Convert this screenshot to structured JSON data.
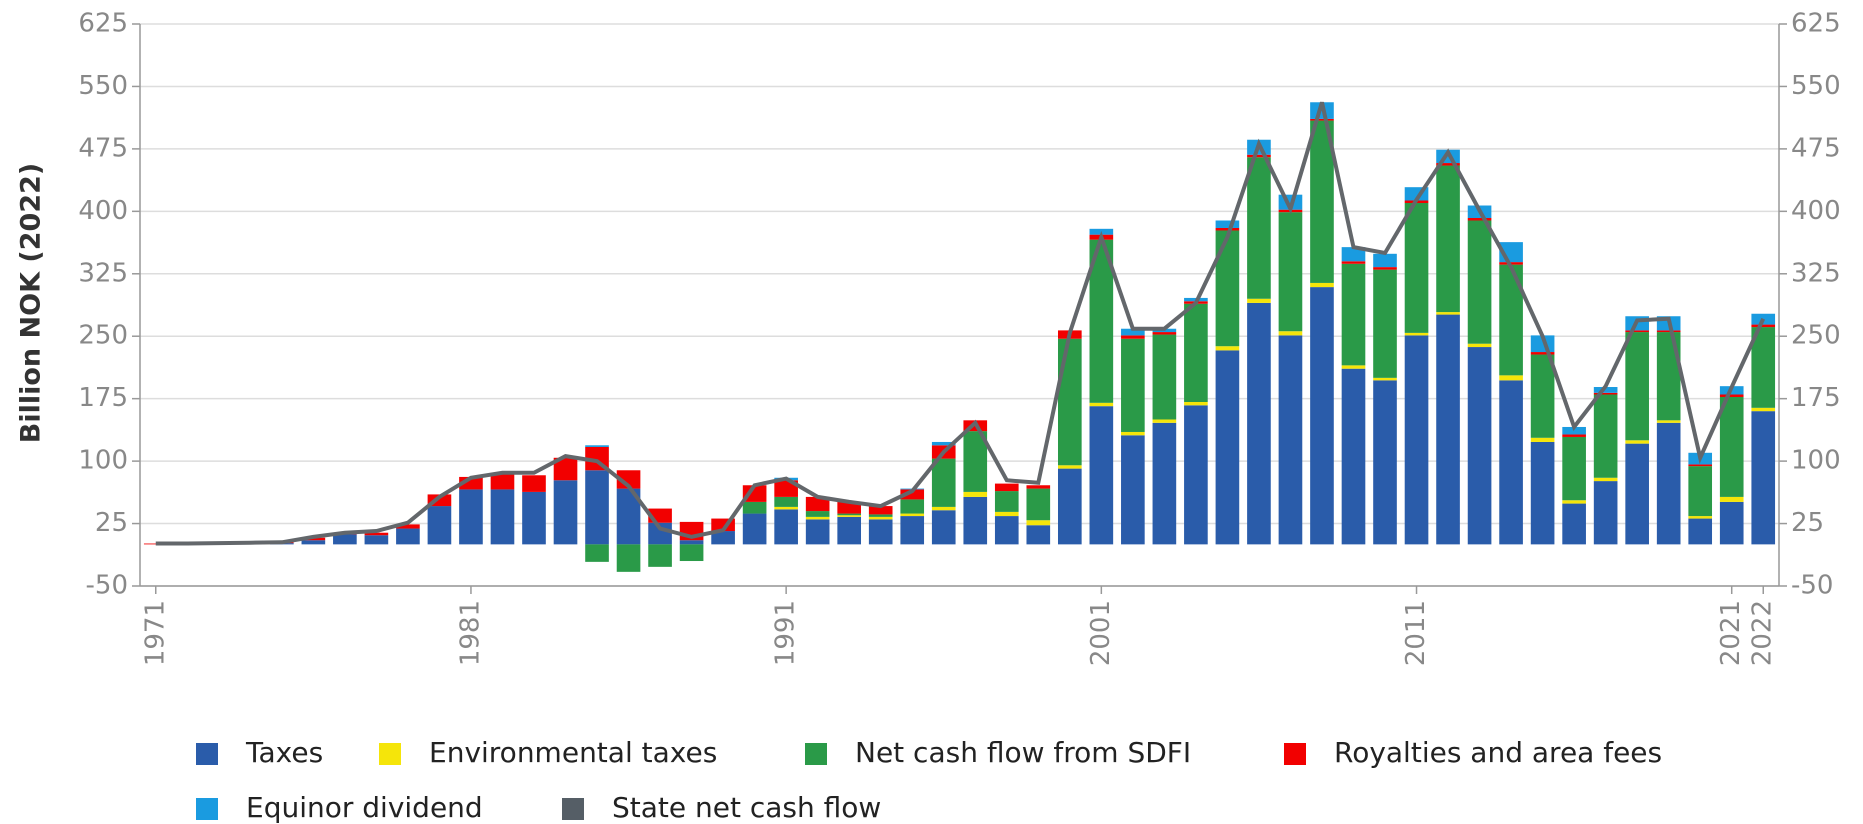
{
  "chart_data": {
    "type": "stacked_bar",
    "y_label": "Billion NOK (2022)",
    "x": [
      1971,
      1972,
      1973,
      1974,
      1975,
      1976,
      1977,
      1978,
      1979,
      1980,
      1981,
      1982,
      1983,
      1984,
      1985,
      1986,
      1987,
      1988,
      1989,
      1990,
      1991,
      1992,
      1993,
      1994,
      1995,
      1996,
      1997,
      1998,
      1999,
      2000,
      2001,
      2002,
      2003,
      2004,
      2005,
      2006,
      2007,
      2008,
      2009,
      2010,
      2011,
      2012,
      2013,
      2014,
      2015,
      2016,
      2017,
      2018,
      2019,
      2020,
      2021,
      2022
    ],
    "xlim": [
      1970.5,
      2022.5
    ],
    "xticks": [
      1971,
      1981,
      1991,
      2001,
      2011,
      2021,
      2022
    ],
    "ylim": [
      -50,
      625
    ],
    "yticks": [
      -50,
      25,
      100,
      175,
      250,
      325,
      400,
      475,
      550,
      625
    ],
    "grid": true,
    "series": [
      {
        "name": "Taxes",
        "color": "#2a5caa",
        "values": [
          0,
          0.5,
          1,
          1,
          1.5,
          5,
          12,
          11,
          19,
          46,
          66,
          66,
          63,
          77,
          89,
          67,
          26,
          5,
          16,
          37,
          42,
          30,
          33,
          30,
          34,
          41,
          57,
          34,
          23,
          91,
          166,
          131,
          146,
          167,
          233,
          290,
          251,
          309,
          211,
          197,
          251,
          276,
          237,
          197,
          123,
          49,
          76,
          121,
          146,
          31,
          51,
          160
        ]
      },
      {
        "name": "Environmental taxes",
        "color": "#f5e50a",
        "values": [
          0,
          0,
          0,
          0,
          0,
          0,
          0,
          0,
          0,
          0,
          0,
          0,
          0,
          0,
          0,
          0,
          0,
          0,
          0,
          0,
          3,
          3,
          2,
          3,
          3,
          4,
          6,
          5,
          6,
          4,
          4,
          4,
          4,
          4,
          5,
          5,
          5,
          5,
          4,
          3,
          3,
          3,
          4,
          6,
          5,
          4,
          4,
          4,
          3,
          3,
          6,
          4
        ]
      },
      {
        "name": "Net cash flow from SDFI",
        "color": "#2a9a48",
        "values": [
          0,
          0,
          0,
          0,
          0,
          0,
          0,
          0,
          0,
          0,
          0,
          0,
          0,
          0,
          -21,
          -33,
          -27,
          -20,
          0,
          14,
          12,
          7,
          2,
          3,
          17,
          58,
          73,
          25,
          38,
          152,
          196,
          112,
          102,
          118,
          139,
          170,
          143,
          195,
          122,
          130,
          156,
          176,
          148,
          133,
          100,
          76,
          100,
          130,
          106,
          60,
          120,
          97
        ]
      },
      {
        "name": "Royalties and area fees",
        "color": "#f20000",
        "values": [
          1,
          0.5,
          0.5,
          1,
          1,
          3,
          2,
          3,
          5,
          14,
          15,
          20,
          20,
          27,
          28,
          22,
          17,
          22,
          15,
          20,
          20,
          17,
          14,
          10,
          12,
          16,
          13,
          9,
          4,
          10,
          6,
          4,
          3,
          3,
          3,
          3,
          3,
          2,
          3,
          3,
          3,
          3,
          3,
          3,
          3,
          3,
          2,
          2,
          2,
          2,
          3,
          3
        ]
      },
      {
        "name": "Equinor dividend",
        "color": "#1a9be0",
        "values": [
          0,
          0,
          0,
          0,
          0,
          0,
          0,
          0,
          0,
          0,
          0,
          0,
          0,
          0,
          2,
          0,
          0,
          0,
          0,
          0,
          3,
          0,
          0,
          0,
          1,
          4,
          0,
          0,
          0,
          0,
          7,
          8,
          4,
          4,
          9,
          18,
          18,
          20,
          17,
          16,
          16,
          16,
          15,
          24,
          20,
          9,
          7,
          17,
          17,
          14,
          10,
          13
        ]
      },
      {
        "name": "State net cash flow",
        "type": "line",
        "color": "#63676b",
        "legend_color": "#555e66",
        "values": [
          1,
          1,
          1.5,
          2,
          2.5,
          9,
          14,
          16,
          26,
          57,
          80,
          86,
          86,
          106,
          100,
          70,
          19,
          9,
          17,
          71,
          79,
          57,
          51,
          46,
          64,
          111,
          146,
          77,
          74,
          254,
          369,
          259,
          259,
          290,
          369,
          481,
          403,
          531,
          357,
          350,
          414,
          471,
          401,
          333,
          250,
          141,
          190,
          269,
          271,
          104,
          189,
          271
        ]
      }
    ]
  }
}
